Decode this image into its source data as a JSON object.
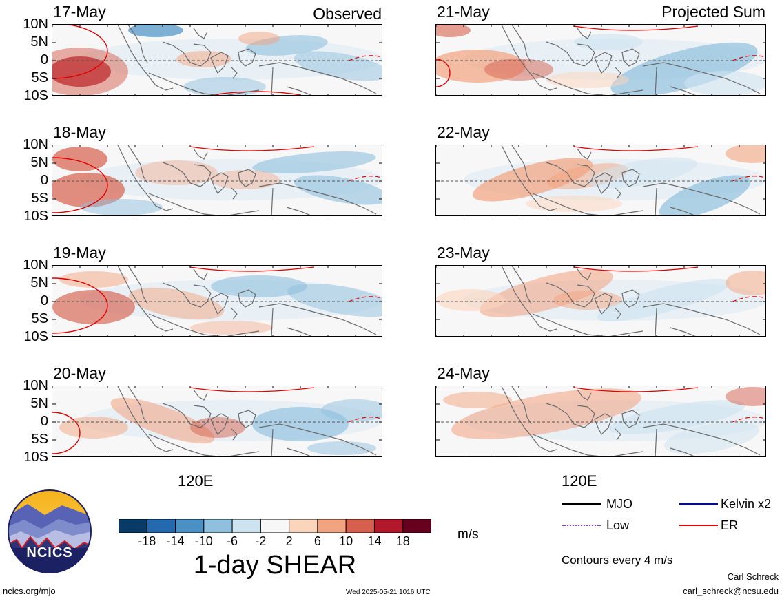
{
  "headers": {
    "left": "Observed",
    "right": "Projected Sum"
  },
  "lat_labels": [
    "10N",
    "5N",
    "0",
    "5S",
    "10S"
  ],
  "lon_label": "120E",
  "observed": [
    {
      "date": "17-May"
    },
    {
      "date": "18-May"
    },
    {
      "date": "19-May"
    },
    {
      "date": "20-May"
    }
  ],
  "projected": [
    {
      "date": "21-May"
    },
    {
      "date": "22-May"
    },
    {
      "date": "23-May"
    },
    {
      "date": "24-May"
    }
  ],
  "colorbar": {
    "ticks": [
      "-18",
      "-14",
      "-10",
      "-6",
      "-2",
      "2",
      "6",
      "10",
      "14",
      "18"
    ],
    "colors": [
      "#0a3a66",
      "#2468ad",
      "#4a90c4",
      "#8fc0de",
      "#cde3f0",
      "#f7f7f7",
      "#fbd4bc",
      "#f2a37f",
      "#d6604d",
      "#b2182b",
      "#67001f"
    ],
    "unit": "m/s",
    "title": "1-day SHEAR"
  },
  "legend": {
    "items": [
      {
        "label": "MJO",
        "color": "#000000"
      },
      {
        "label": "Kelvin x2",
        "color": "#0000cc"
      },
      {
        "label": "Low",
        "color": "#8a3fd1"
      },
      {
        "label": "ER",
        "color": "#e00000"
      }
    ],
    "contours_note": "Contours every 4 m/s"
  },
  "logo": {
    "text": "NCICS"
  },
  "footer": {
    "url": "ncics.org/mjo",
    "timestamp": "Wed 2025-05-21 1016 UTC",
    "author": "Carl Schreck",
    "email": "carl_schreck@ncsu.edu"
  }
}
